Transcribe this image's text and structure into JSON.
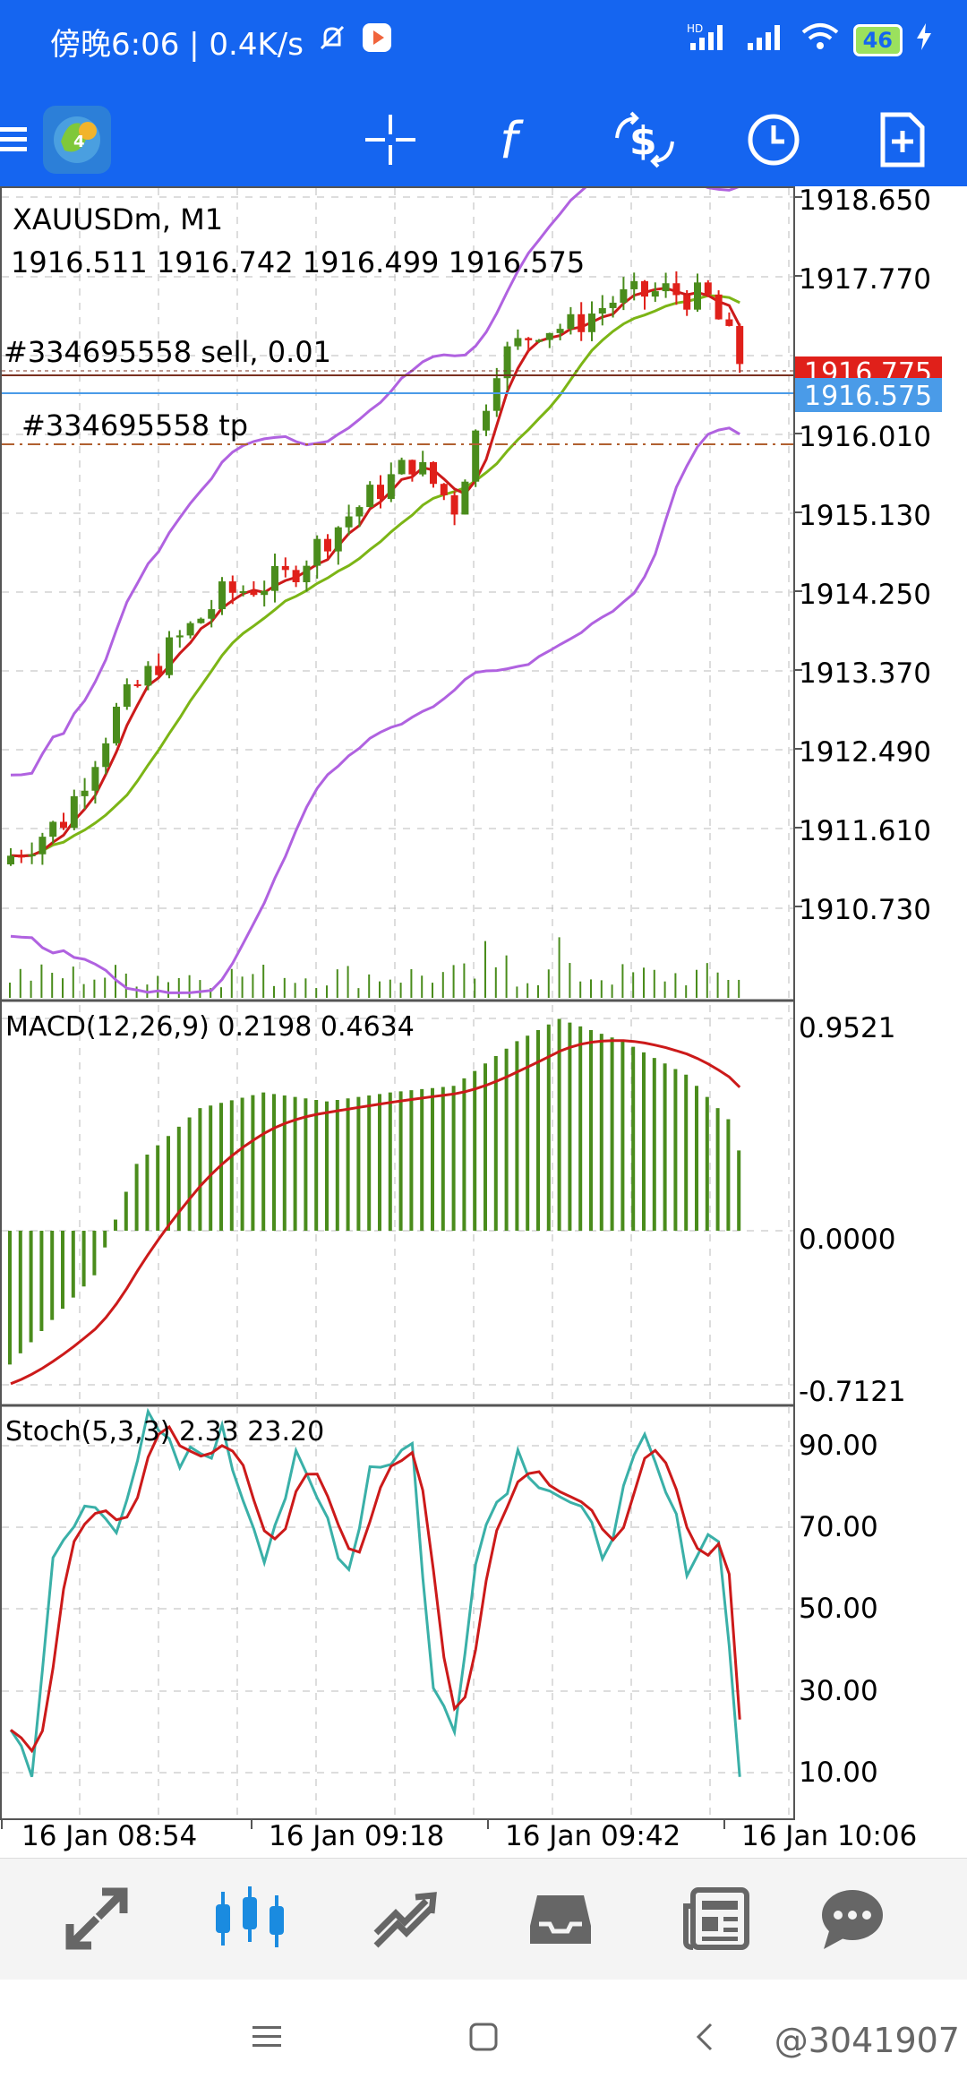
{
  "status_bar": {
    "time_text": "傍晚6:06 | 0.4K/s",
    "battery": "46",
    "network": "HD"
  },
  "toolbar": {
    "icons": [
      "menu-icon",
      "app-logo",
      "crosshair-icon",
      "indicators-icon",
      "symbols-icon",
      "history-icon",
      "new-order-icon"
    ]
  },
  "chart": {
    "symbol": "XAUUSDm, M1",
    "ohlc": "1916.511 1916.742 1916.499 1916.575",
    "order_label": "#334695558 sell, 0.01",
    "tp_label": "#334695558 tp",
    "price_axis": [
      "1918.650",
      "1917.770",
      "1916.010",
      "1915.130",
      "1914.250",
      "1913.370",
      "1912.490",
      "1911.610",
      "1910.730"
    ],
    "order_price_tag": "1916.775",
    "bid_price_tag": "1916.575",
    "colors": {
      "bull": "#4a8c1c",
      "bear": "#e0201a",
      "band": "#b062e0",
      "ma_fast": "#cc1a1a",
      "ma_slow": "#7cb516",
      "bid": "#4a9be8"
    }
  },
  "macd": {
    "label": "MACD(12,26,9) 0.2198 0.4634",
    "axis": [
      "0.9521",
      "0.0000",
      "-0.7121"
    ]
  },
  "stoch": {
    "label": "Stoch(5,3,3) 2.33 23.20",
    "axis": [
      "90.00",
      "70.00",
      "50.00",
      "30.00",
      "10.00"
    ]
  },
  "time_axis": [
    "16 Jan 08:54",
    "16 Jan 09:18",
    "16 Jan 09:42",
    "16 Jan 10:06"
  ],
  "bottom_nav": [
    "quotes-icon",
    "chart-icon",
    "trade-icon",
    "history-icon",
    "news-icon",
    "messages-icon"
  ],
  "watermark": "@3041907"
}
